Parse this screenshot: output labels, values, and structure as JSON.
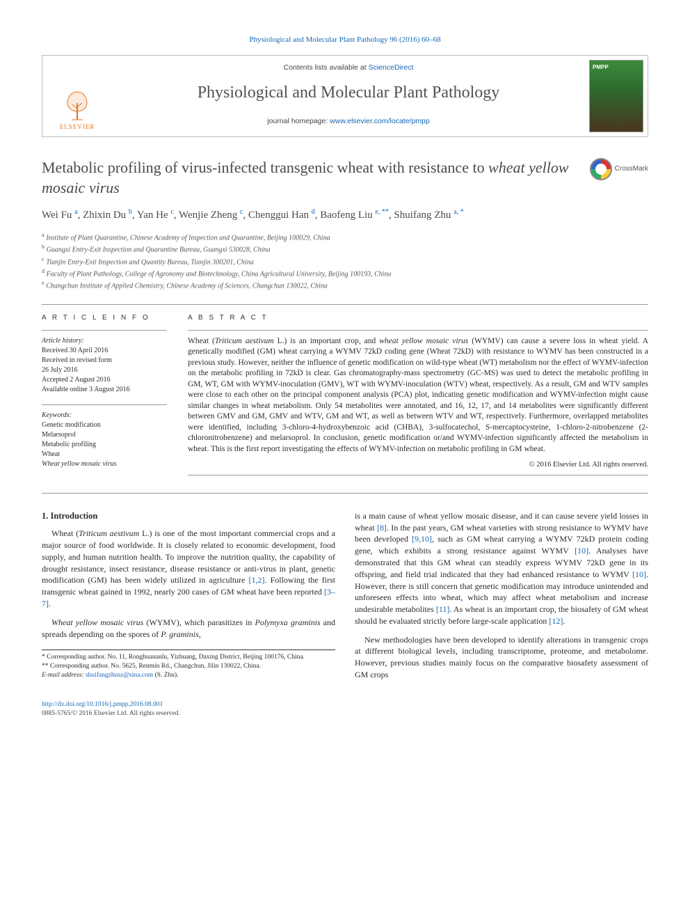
{
  "top_citation": "Physiological and Molecular Plant Pathology 96 (2016) 60–68",
  "banner": {
    "contents_prefix": "Contents lists available at ",
    "contents_link": "ScienceDirect",
    "journal_name": "Physiological and Molecular Plant Pathology",
    "homepage_prefix": "journal homepage: ",
    "homepage_link": "www.elsevier.com/locate/pmpp",
    "publisher": "ELSEVIER",
    "cover_label": "PMPP"
  },
  "crossmark_label": "CrossMark",
  "title_plain": "Metabolic profiling of virus-infected transgenic wheat with resistance to ",
  "title_italic": "wheat yellow mosaic virus",
  "authors_html": "Wei Fu <sup class='sup-link'>a</sup>, Zhixin Du <sup class='sup-link'>b</sup>, Yan He <sup class='sup-link'>c</sup>, Wenjie Zheng <sup class='sup-link'>c</sup>, Chenggui Han <sup class='sup-link'>d</sup>, Baofeng Liu <sup class='sup-link'>e, **</sup>, Shuifang Zhu <sup class='sup-link'>a, *</sup>",
  "affiliations": [
    "a Institute of Plant Quarantine, Chinese Academy of Inspection and Quarantine, Beijing 100029, China",
    "b Guangxi Entry-Exit Inspection and Quarantine Bureau, Guangxi 530028, China",
    "c Tianjin Entry-Exit Inspection and Quantity Bureau, Tianjin 300201, China",
    "d Faculty of Plant Pathology, College of Agronomy and Biotechnology, China Agricultural University, Beijing 100193, China",
    "e Changchun Institute of Applied Chemistry, Chinese Academy of Sciences, Changchun 130022, China"
  ],
  "article_info": {
    "head": "A R T I C L E  I N F O",
    "history_head": "Article history:",
    "history": [
      "Received 30 April 2016",
      "Received in revised form",
      "26 July 2016",
      "Accepted 2 August 2016",
      "Available online 3 August 2016"
    ],
    "keywords_head": "Keywords:",
    "keywords": [
      "Genetic modification",
      "Melarsoprol",
      "Metabolic profiling",
      "Wheat",
      "Wheat yellow mosaic virus"
    ]
  },
  "abstract": {
    "head": "A B S T R A C T",
    "text": "Wheat (Triticum aestivum L.) is an important crop, and wheat yellow mosaic virus (WYMV) can cause a severe loss in wheat yield. A genetically modified (GM) wheat carrying a WYMV 72kD coding gene (Wheat 72kD) with resistance to WYMV has been constructed in a previous study. However, neither the influence of genetic modification on wild-type wheat (WT) metabolism nor the effect of WYMV-infection on the metabolic profiling in 72kD is clear. Gas chromatography-mass spectrometry (GC-MS) was used to detect the metabolic profiling in GM, WT, GM with WYMV-inoculation (GMV), WT with WYMV-inoculation (WTV) wheat, respectively. As a result, GM and WTV samples were close to each other on the principal component analysis (PCA) plot, indicating genetic modification and WYMV-infection might cause similar changes in wheat metabolism. Only 54 metabolites were annotated, and 16, 12, 17, and 14 metabolites were significantly different between GMV and GM, GMV and WTV, GM and WT, as well as between WTV and WT, respectively. Furthermore, overlapped metabolites were identified, including 3-chloro-4-hydroxybenzoic acid (CHBA), 3-sulfocatechol, S-mercaptocysteine, 1-chloro-2-nitrobenzene (2-chloronitrobenzene) and melarsoprol. In conclusion, genetic modification or/and WYMV-infection significantly affected the metabolism in wheat. This is the first report investigating the effects of WYMV-infection on metabolic profiling in GM wheat.",
    "copyright": "© 2016 Elsevier Ltd. All rights reserved."
  },
  "intro": {
    "head": "1. Introduction",
    "p1": "Wheat (Triticum aestivum L.) is one of the most important commercial crops and a major source of food worldwide. It is closely related to economic development, food supply, and human nutrition health. To improve the nutrition quality, the capability of drought resistance, insect resistance, disease resistance or anti-virus in plant, genetic modification (GM) has been widely utilized in agriculture [1,2]. Following the first transgenic wheat gained in 1992, nearly 200 cases of GM wheat have been reported [3–7].",
    "p2": "Wheat yellow mosaic virus (WYMV), which parasitizes in Polymyxa graminis and spreads depending on the spores of P. graminis,",
    "p3": "is a main cause of wheat yellow mosaic disease, and it can cause severe yield losses in wheat [8]. In the past years, GM wheat varieties with strong resistance to WYMV have been developed [9,10], such as GM wheat carrying a WYMV 72kD protein coding gene, which exhibits a strong resistance against WYMV [10]. Analyses have demonstrated that this GM wheat can steadily express WYMV 72kD gene in its offspring, and field trial indicated that they had enhanced resistance to WYMV [10]. However, there is still concern that genetic modification may introduce unintended and unforeseen effects into wheat, which may affect wheat metabolism and increase undesirable metabolites [11]. As wheat is an important crop, the biosafety of GM wheat should be evaluated strictly before large-scale application [12].",
    "p4": "New methodologies have been developed to identify alterations in transgenic crops at different biological levels, including transcriptome, proteome, and metabolome. However, previous studies mainly focus on the comparative biosafety assessment of GM crops"
  },
  "corresponding": {
    "c1": "* Corresponding author. No. 11, Ronghuananlu, Yizhuang, Daxing District, Beijing 100176, China.",
    "c2": "** Corresponding author. No. 5625, Renmin Rd., Changchun, Jilin 130022, China.",
    "email_label": "E-mail address: ",
    "email": "shuifangzhusz@sina.com",
    "email_suffix": " (S. Zhu)."
  },
  "footer": {
    "doi": "http://dx.doi.org/10.1016/j.pmpp.2016.08.001",
    "issn_line": "0885-5765/© 2016 Elsevier Ltd. All rights reserved."
  },
  "colors": {
    "link": "#1566b3",
    "publisher": "#e9711c",
    "text": "#2a2a2a",
    "heading": "#4a4a4a",
    "rule": "#999999"
  }
}
